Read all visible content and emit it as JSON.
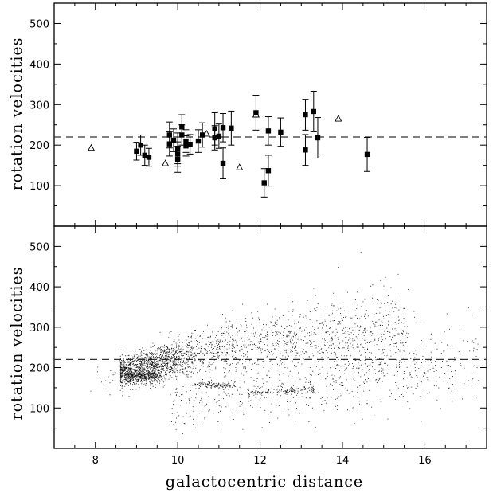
{
  "chart_data": [
    {
      "type": "scatter",
      "panel": "top",
      "xlabel": "",
      "ylabel": "rotation velocities",
      "xlim": [
        7,
        17.5
      ],
      "ylim": [
        0,
        550
      ],
      "yticks": [
        100,
        200,
        300,
        400,
        500
      ],
      "reference_line": {
        "y": 220,
        "style": "dashed"
      },
      "series": [
        {
          "marker": "filled-square",
          "points": [
            {
              "x": 9.0,
              "y": 185,
              "err": 22
            },
            {
              "x": 9.1,
              "y": 200,
              "err": 25
            },
            {
              "x": 9.2,
              "y": 175,
              "err": 25
            },
            {
              "x": 9.3,
              "y": 170,
              "err": 22
            },
            {
              "x": 9.8,
              "y": 225,
              "err": 32
            },
            {
              "x": 9.8,
              "y": 203,
              "err": 30
            },
            {
              "x": 9.9,
              "y": 212,
              "err": 28
            },
            {
              "x": 10.0,
              "y": 192,
              "err": 38
            },
            {
              "x": 10.0,
              "y": 178,
              "err": 30
            },
            {
              "x": 10.0,
              "y": 165,
              "err": 32
            },
            {
              "x": 10.1,
              "y": 245,
              "err": 30
            },
            {
              "x": 10.1,
              "y": 225,
              "err": 25
            },
            {
              "x": 10.2,
              "y": 210,
              "err": 28
            },
            {
              "x": 10.2,
              "y": 198,
              "err": 25
            },
            {
              "x": 10.3,
              "y": 202,
              "err": 24
            },
            {
              "x": 10.5,
              "y": 210,
              "err": 28
            },
            {
              "x": 10.6,
              "y": 225,
              "err": 30
            },
            {
              "x": 10.9,
              "y": 240,
              "err": 40
            },
            {
              "x": 10.9,
              "y": 218,
              "err": 30
            },
            {
              "x": 11.0,
              "y": 222,
              "err": 30
            },
            {
              "x": 11.1,
              "y": 243,
              "err": 35
            },
            {
              "x": 11.1,
              "y": 155,
              "err": 38
            },
            {
              "x": 11.3,
              "y": 242,
              "err": 42
            },
            {
              "x": 11.9,
              "y": 280,
              "err": 43
            },
            {
              "x": 12.1,
              "y": 107,
              "err": 35
            },
            {
              "x": 12.2,
              "y": 235,
              "err": 35
            },
            {
              "x": 12.2,
              "y": 137,
              "err": 38
            },
            {
              "x": 12.5,
              "y": 232,
              "err": 35
            },
            {
              "x": 13.1,
              "y": 275,
              "err": 38
            },
            {
              "x": 13.1,
              "y": 188,
              "err": 38
            },
            {
              "x": 13.3,
              "y": 283,
              "err": 50
            },
            {
              "x": 13.4,
              "y": 218,
              "err": 50
            },
            {
              "x": 14.6,
              "y": 177,
              "err": 42
            }
          ]
        },
        {
          "marker": "open-triangle",
          "points": [
            {
              "x": 7.9,
              "y": 193
            },
            {
              "x": 9.7,
              "y": 155
            },
            {
              "x": 10.7,
              "y": 228
            },
            {
              "x": 11.5,
              "y": 145
            },
            {
              "x": 11.9,
              "y": 275
            },
            {
              "x": 13.9,
              "y": 265
            }
          ]
        }
      ]
    },
    {
      "type": "scatter",
      "panel": "bottom",
      "xlabel": "galactocentric distance",
      "ylabel": "rotation velocities",
      "xlim": [
        7,
        17.5
      ],
      "ylim": [
        0,
        550
      ],
      "xticks": [
        8,
        10,
        12,
        14,
        16
      ],
      "yticks": [
        100,
        200,
        300,
        400,
        500
      ],
      "reference_line": {
        "y": 220,
        "style": "dashed"
      },
      "point_cloud": {
        "marker": "dot",
        "approx_count": 15000
      }
    }
  ]
}
